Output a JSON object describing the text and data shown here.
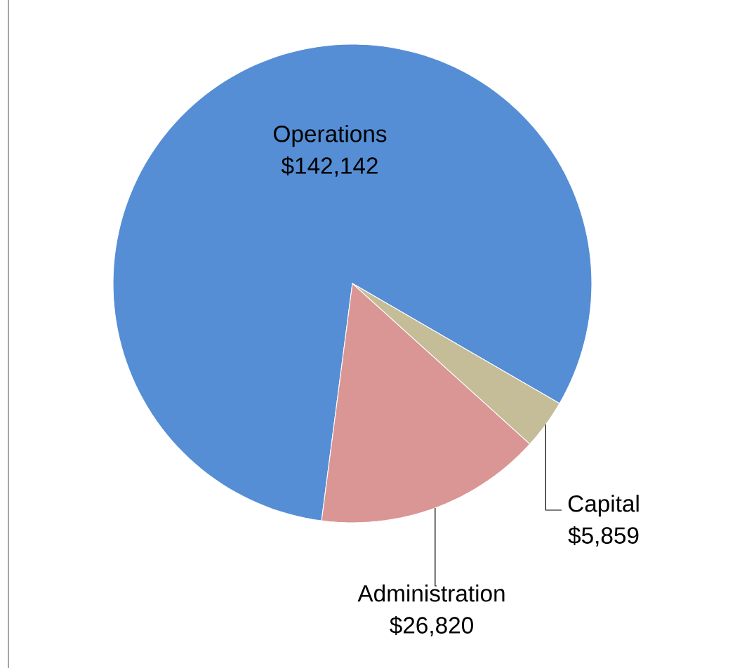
{
  "chart_data": {
    "type": "pie",
    "categories": [
      "Operations",
      "Capital",
      "Administration"
    ],
    "values": [
      142142,
      5859,
      26820
    ],
    "value_labels": [
      "$142,142",
      "$5,859",
      "$26,820"
    ],
    "colors": [
      "#558ed5",
      "#c4bd97",
      "#d99694"
    ]
  }
}
